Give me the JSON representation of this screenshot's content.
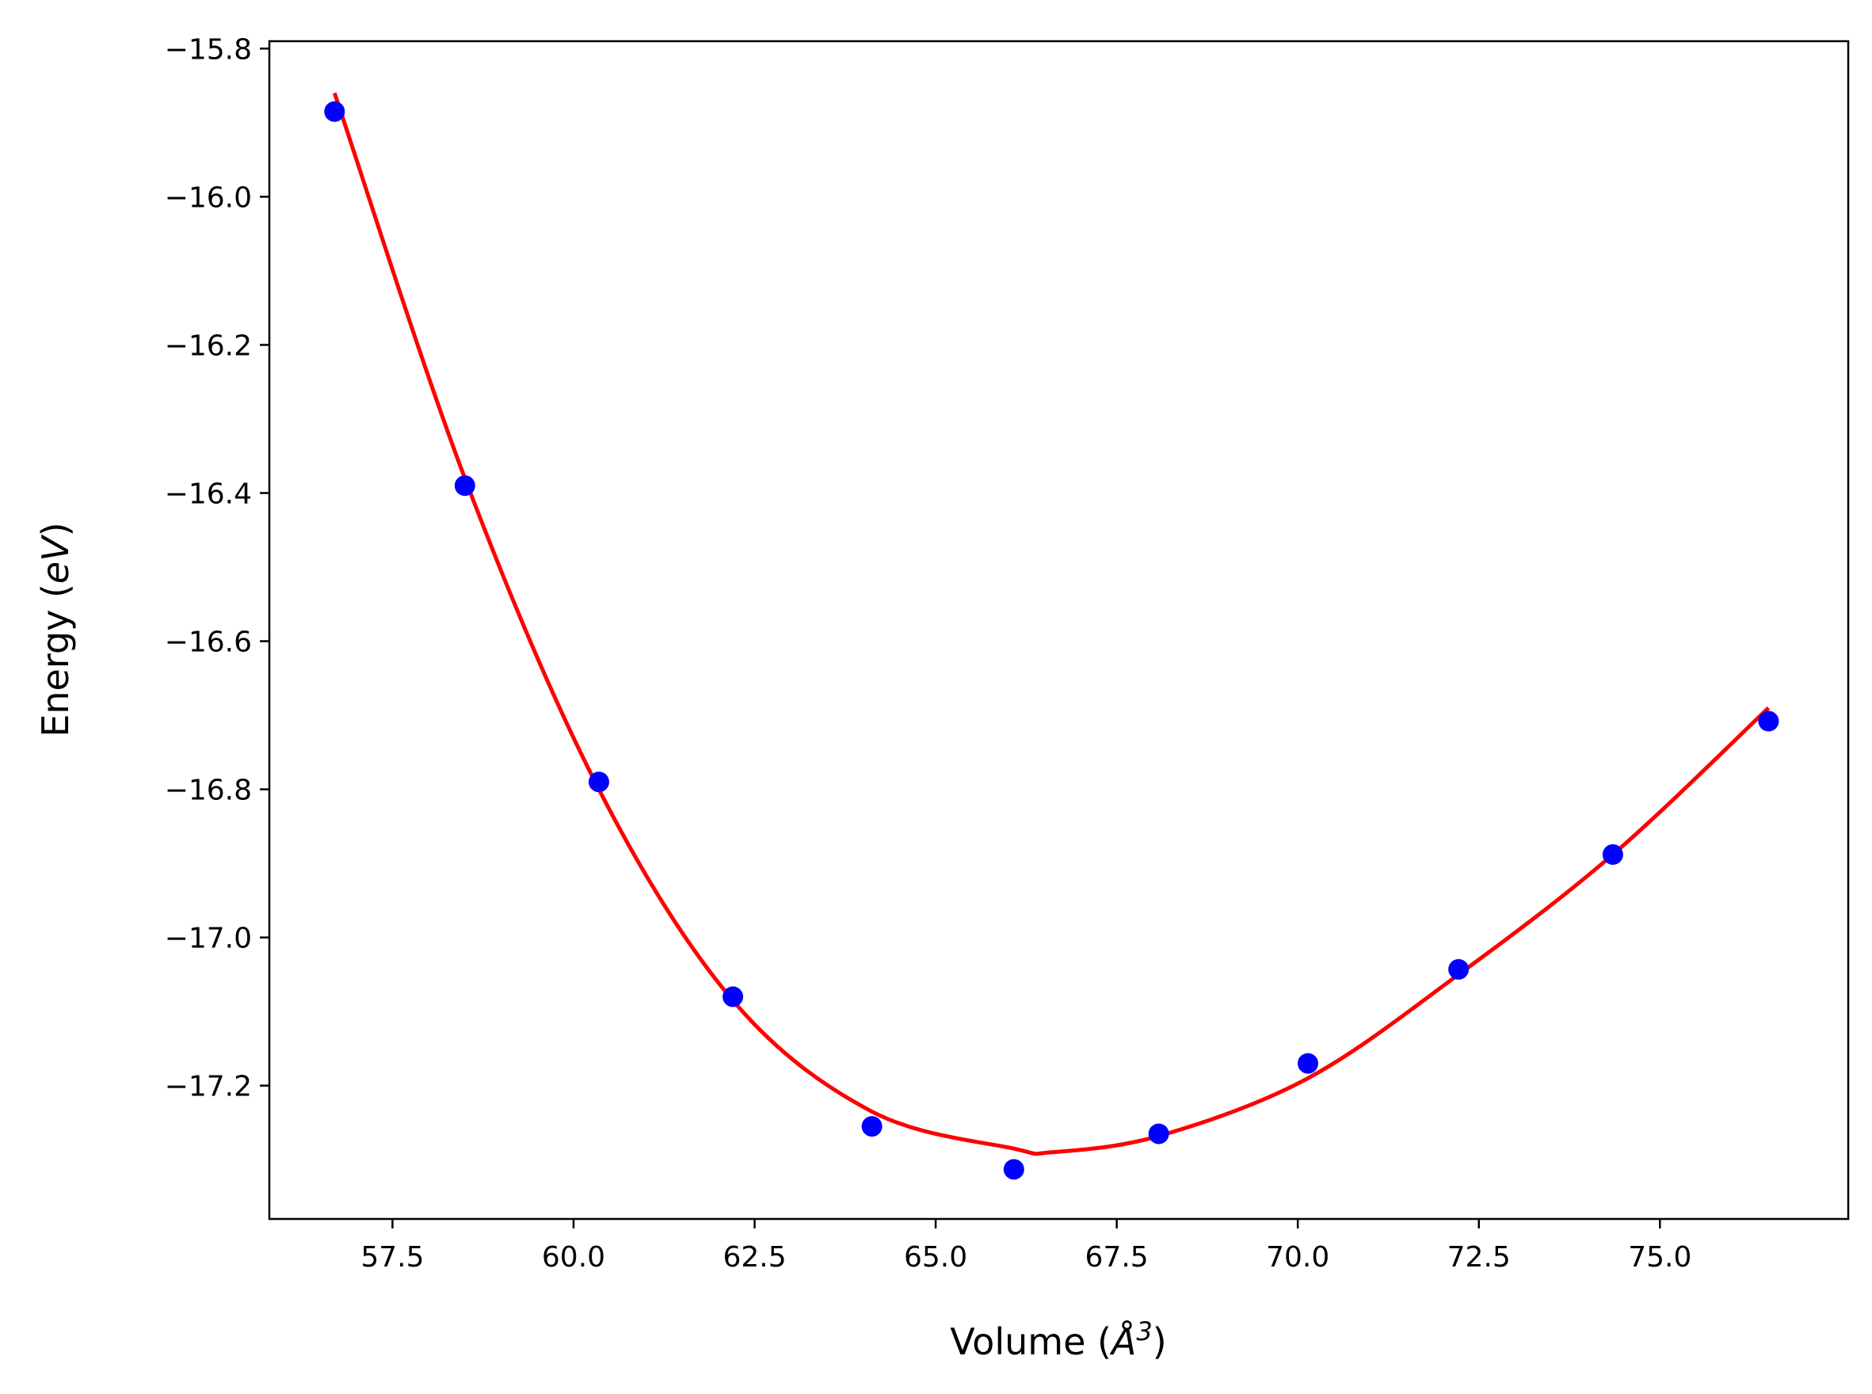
{
  "chart_data": {
    "type": "scatter",
    "xlabel_prefix": "Volume (",
    "xlabel_symbol": "Å",
    "xlabel_sup": "3",
    "xlabel_suffix": ")",
    "ylabel_prefix": "Energy (",
    "ylabel_unit": "eV",
    "ylabel_suffix": ")",
    "xlim": [
      55.8,
      77.6
    ],
    "ylim": [
      -17.38,
      -15.79
    ],
    "x_ticks": [
      57.5,
      60.0,
      62.5,
      65.0,
      67.5,
      70.0,
      72.5,
      75.0
    ],
    "x_tick_labels": [
      "57.5",
      "60.0",
      "62.5",
      "65.0",
      "67.5",
      "70.0",
      "72.5",
      "75.0"
    ],
    "y_ticks": [
      -15.8,
      -16.0,
      -16.2,
      -16.4,
      -16.6,
      -16.8,
      -17.0,
      -17.2
    ],
    "y_tick_labels": [
      "−15.8",
      "−16.0",
      "−16.2",
      "−16.4",
      "−16.6",
      "−16.8",
      "−17.0",
      "−17.2"
    ],
    "grid": false,
    "series": [
      {
        "kind": "points",
        "color": "#0000ff",
        "x": [
          56.7,
          58.5,
          60.35,
          62.2,
          64.12,
          66.08,
          68.08,
          70.14,
          72.22,
          74.35,
          76.5
        ],
        "y": [
          -15.885,
          -16.39,
          -16.79,
          -17.08,
          -17.255,
          -17.313,
          -17.265,
          -17.17,
          -17.043,
          -16.888,
          -16.708
        ]
      },
      {
        "kind": "fit",
        "color": "#ff0000",
        "x": [
          56.7,
          58.5,
          60.35,
          62.2,
          64.12,
          66.08,
          66.6,
          68.08,
          70.14,
          72.22,
          74.35,
          76.5
        ],
        "y": [
          -15.86,
          -16.38,
          -16.8,
          -17.085,
          -17.235,
          -17.285,
          -17.29,
          -17.268,
          -17.19,
          -17.05,
          -16.888,
          -16.69
        ]
      }
    ]
  }
}
